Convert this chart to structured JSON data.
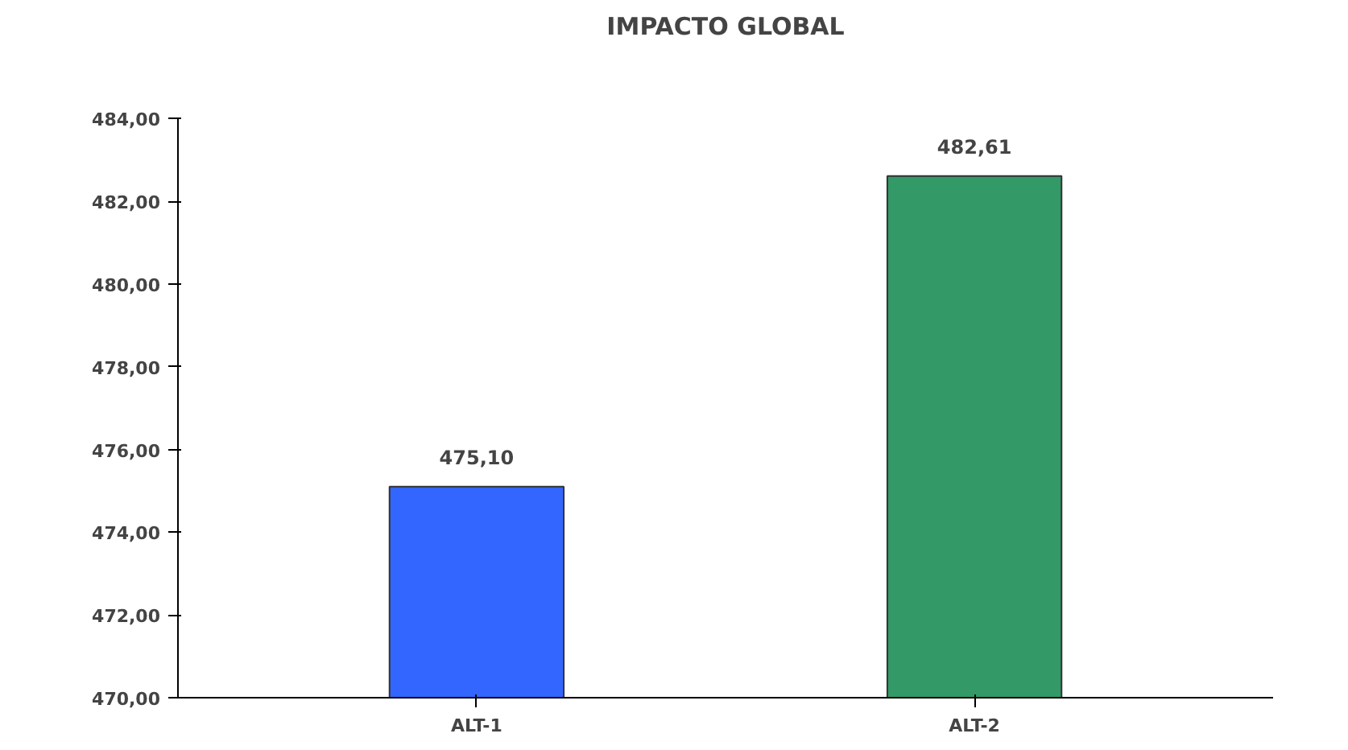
{
  "chart_data": {
    "type": "bar",
    "title": "IMPACTO GLOBAL",
    "categories": [
      "ALT-1",
      "ALT-2"
    ],
    "values": [
      475.1,
      482.61
    ],
    "colors": [
      "#3366ff",
      "#339966"
    ],
    "value_labels": [
      "475,10",
      "482,61"
    ],
    "ylim": [
      470,
      484
    ],
    "yticks": [
      {
        "value": 470,
        "label": "470,00"
      },
      {
        "value": 472,
        "label": "472,00"
      },
      {
        "value": 474,
        "label": "474,00"
      },
      {
        "value": 476,
        "label": "476,00"
      },
      {
        "value": 478,
        "label": "478,00"
      },
      {
        "value": 480,
        "label": "480,00"
      },
      {
        "value": 482,
        "label": "482,00"
      },
      {
        "value": 484,
        "label": "484,00"
      }
    ],
    "grid": false
  }
}
